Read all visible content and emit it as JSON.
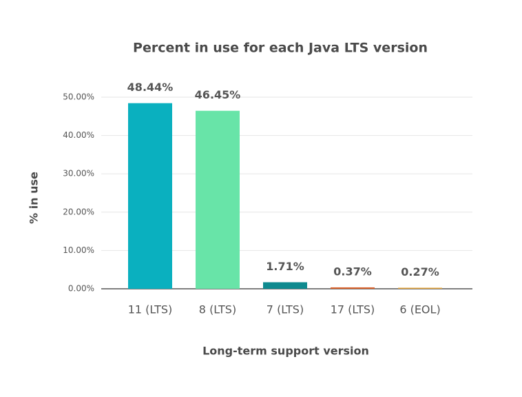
{
  "chart_data": {
    "type": "bar",
    "title": "Percent in use for each Java LTS version",
    "x_label": "Long-term support version",
    "y_label": "% in use",
    "categories": [
      "11 (LTS)",
      "8 (LTS)",
      "7 (LTS)",
      "17 (LTS)",
      "6 (EOL)"
    ],
    "values": [
      48.44,
      46.45,
      1.71,
      0.37,
      0.27
    ],
    "value_labels": [
      "48.44%",
      "46.45%",
      "1.71%",
      "0.37%",
      "0.27%"
    ],
    "colors": [
      "#0ab0bf",
      "#68e4a8",
      "#0e8a8f",
      "#d9622b",
      "#e0a23a"
    ],
    "ylim": [
      0,
      50
    ],
    "yticks": [
      {
        "value": 0,
        "label": "0.00%"
      },
      {
        "value": 10,
        "label": "10.00%"
      },
      {
        "value": 20,
        "label": "20.00%"
      },
      {
        "value": 30,
        "label": "30.00%"
      },
      {
        "value": 40,
        "label": "40.00%"
      },
      {
        "value": 50,
        "label": "50.00%"
      }
    ],
    "grid": true
  }
}
